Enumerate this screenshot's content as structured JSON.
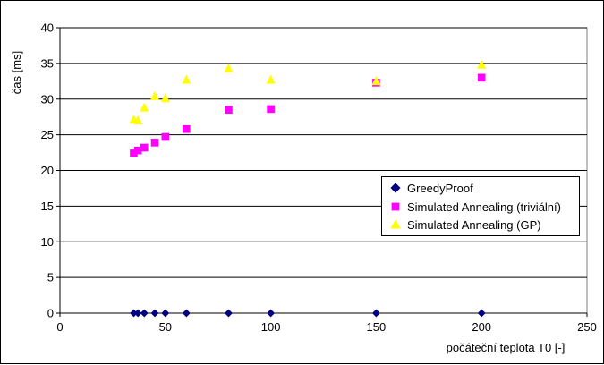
{
  "chart_data": {
    "type": "scatter",
    "xlabel": "počáteční teplota T0 [-]",
    "ylabel": "čas [ms]",
    "xlim": [
      0,
      250
    ],
    "ylim": [
      0,
      40
    ],
    "x_ticks": [
      "0",
      "50",
      "100",
      "150",
      "200",
      "250"
    ],
    "y_ticks": [
      "0",
      "5",
      "10",
      "15",
      "20",
      "25",
      "30",
      "35",
      "40"
    ],
    "grid": "horizontal",
    "legend_position": "right",
    "series": [
      {
        "name": "GreedyProof",
        "marker": "diamond",
        "color": "#000080",
        "points": [
          [
            35,
            0
          ],
          [
            37,
            0
          ],
          [
            40,
            0
          ],
          [
            45,
            0
          ],
          [
            50,
            0
          ],
          [
            60,
            0
          ],
          [
            80,
            0
          ],
          [
            100,
            0
          ],
          [
            150,
            0
          ],
          [
            200,
            0
          ]
        ]
      },
      {
        "name": "Simulated Annealing (triviální)",
        "marker": "square",
        "color": "#FF00FF",
        "points": [
          [
            35,
            22.4
          ],
          [
            37,
            22.8
          ],
          [
            40,
            23.2
          ],
          [
            45,
            23.9
          ],
          [
            50,
            24.7
          ],
          [
            60,
            25.8
          ],
          [
            80,
            28.5
          ],
          [
            100,
            28.6
          ],
          [
            150,
            32.3
          ],
          [
            200,
            33.0
          ]
        ]
      },
      {
        "name": "Simulated Annealing (GP)",
        "marker": "triangle",
        "color": "#FFFF00",
        "points": [
          [
            35,
            27.1
          ],
          [
            37,
            27.0
          ],
          [
            40,
            28.8
          ],
          [
            45,
            30.4
          ],
          [
            50,
            30.1
          ],
          [
            60,
            32.7
          ],
          [
            80,
            34.3
          ],
          [
            100,
            32.7
          ],
          [
            150,
            32.5
          ],
          [
            200,
            34.8
          ]
        ]
      }
    ]
  }
}
